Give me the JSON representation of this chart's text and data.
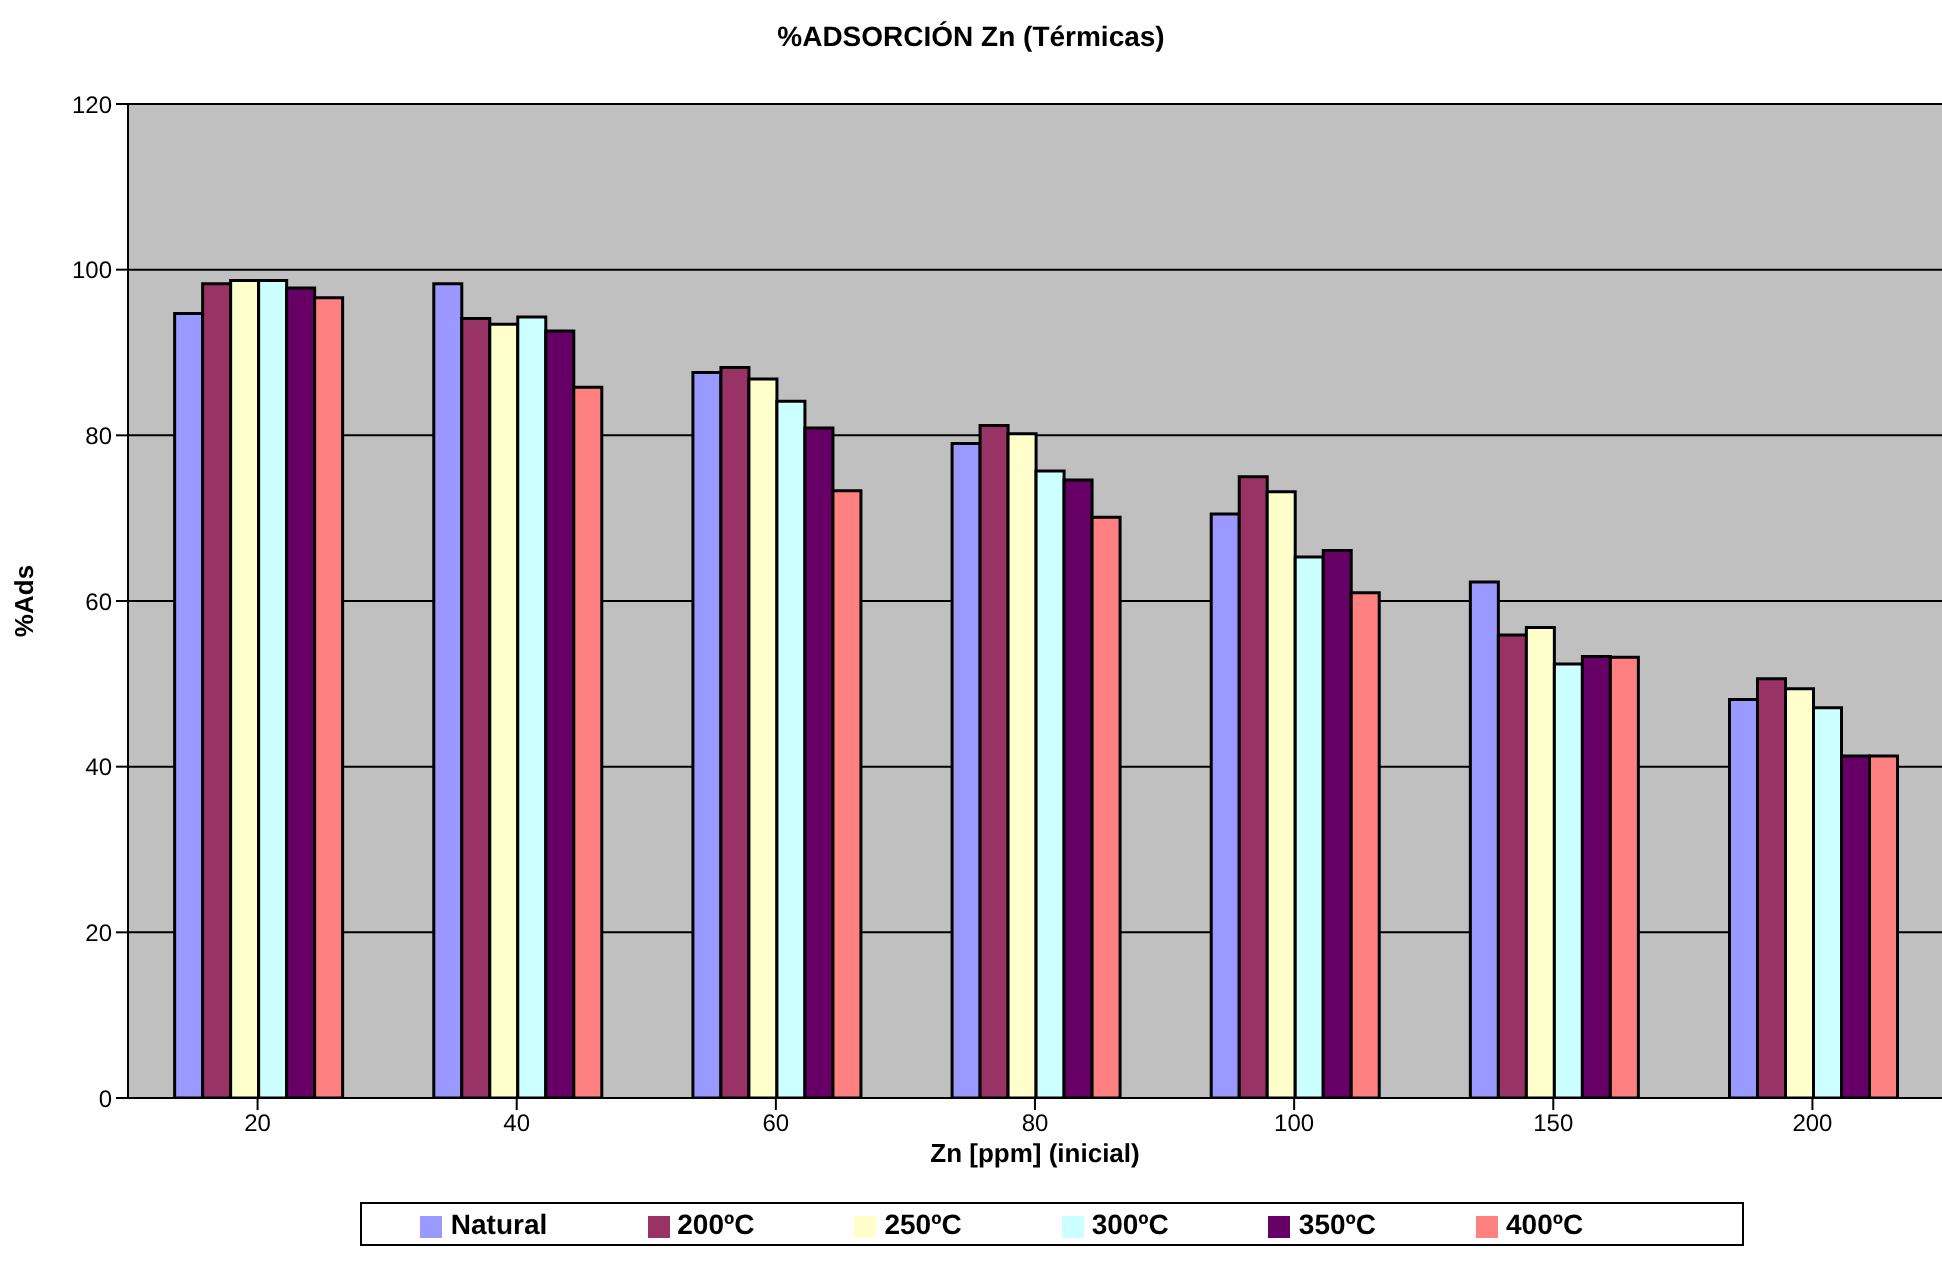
{
  "chart_data": {
    "type": "bar",
    "title": "%ADSORCIÓN Zn (Térmicas)",
    "xlabel": "Zn [ppm] (inicial)",
    "ylabel": "%Ads",
    "categories": [
      "20",
      "40",
      "60",
      "80",
      "100",
      "150",
      "200"
    ],
    "series": [
      {
        "name": "Natural",
        "color": "#9999ff",
        "values": [
          94.7,
          98.3,
          87.6,
          79.0,
          70.5,
          62.3,
          48.1
        ]
      },
      {
        "name": "200ºC",
        "color": "#993366",
        "values": [
          98.3,
          94.1,
          88.2,
          81.2,
          75.0,
          55.9,
          50.6
        ]
      },
      {
        "name": "250ºC",
        "color": "#ffffcc",
        "values": [
          98.7,
          93.4,
          86.8,
          80.2,
          73.2,
          56.8,
          49.4
        ]
      },
      {
        "name": "300ºC",
        "color": "#ccffff",
        "values": [
          98.7,
          94.3,
          84.1,
          75.7,
          65.3,
          52.4,
          47.1
        ]
      },
      {
        "name": "350ºC",
        "color": "#660066",
        "values": [
          97.8,
          92.6,
          80.9,
          74.6,
          66.1,
          53.3,
          41.3
        ]
      },
      {
        "name": "400ºC",
        "color": "#ff8080",
        "values": [
          96.6,
          85.8,
          73.3,
          70.1,
          61.0,
          53.2,
          41.3
        ]
      }
    ],
    "ylim": [
      0,
      120
    ],
    "yticks": [
      0,
      20,
      40,
      60,
      80,
      100,
      120
    ],
    "grid": "y",
    "legend": "bottom"
  }
}
